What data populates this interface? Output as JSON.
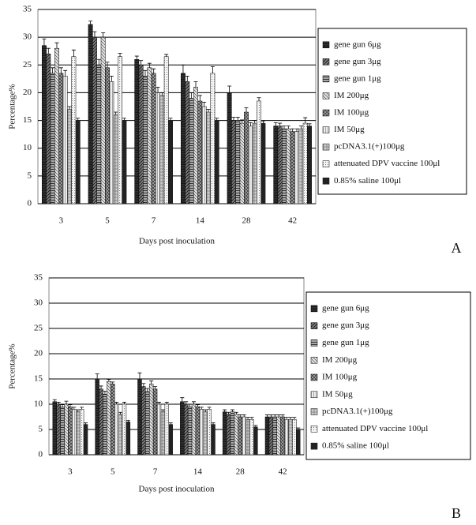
{
  "chart_data": [
    {
      "type": "bar",
      "panel_label": "A",
      "ylabel": "Percentage%",
      "xlabel": "Days post inoculation",
      "categories": [
        "3",
        "5",
        "7",
        "14",
        "28",
        "42"
      ],
      "ylim": [
        0,
        35
      ],
      "yticks": [
        0,
        5,
        10,
        15,
        20,
        25,
        30,
        35
      ],
      "grid": true,
      "legend": "right",
      "series": [
        {
          "name": "gene gun 6μg",
          "color": "#333333",
          "values": [
            28.5,
            32.3,
            26,
            23.5,
            20,
            14
          ],
          "errors": [
            1.2,
            0.6,
            0.6,
            1.5,
            1.2,
            0.6
          ]
        },
        {
          "name": "gene gun 3μg",
          "color": "#777777",
          "values": [
            27,
            30,
            25,
            22,
            15,
            14
          ],
          "errors": [
            1,
            1,
            0.8,
            1,
            0.6,
            0.5
          ]
        },
        {
          "name": "gene gun 1μg",
          "color": "#aaaaaa",
          "values": [
            23.5,
            25,
            23,
            19,
            15,
            13.5
          ],
          "errors": [
            1,
            1,
            1,
            1,
            0.6,
            0.5
          ]
        },
        {
          "name": "IM 200μg",
          "color": "#dddddd",
          "values": [
            28,
            30,
            24.5,
            21,
            14.5,
            13.5
          ],
          "errors": [
            1,
            0.8,
            0.8,
            1,
            0.6,
            0.5
          ]
        },
        {
          "name": "IM 100μg",
          "color": "#999999",
          "values": [
            23.5,
            24.5,
            23.5,
            18.5,
            16.5,
            13
          ],
          "errors": [
            1,
            1,
            0.8,
            1,
            0.8,
            0.5
          ]
        },
        {
          "name": "IM 50μg",
          "color": "#eeeeee",
          "values": [
            23,
            22,
            20,
            17.5,
            14,
            13
          ],
          "errors": [
            1,
            1,
            1,
            0.8,
            0.6,
            0.5
          ]
        },
        {
          "name": "pcDNA3.1(+)100μg",
          "color": "#cccccc",
          "values": [
            17,
            16,
            19.5,
            16.5,
            14.5,
            13.5
          ],
          "errors": [
            0.5,
            0.5,
            0.5,
            0.5,
            0.5,
            0.5
          ]
        },
        {
          "name": "attenuated DPV vaccine 100μl",
          "color": "#f4f4f4",
          "values": [
            26.5,
            26.5,
            26.5,
            23.5,
            18.5,
            14.5
          ],
          "errors": [
            1.2,
            0.6,
            0.4,
            1.2,
            0.6,
            1
          ]
        },
        {
          "name": "0.85% saline 100μl",
          "color": "#222222",
          "values": [
            15,
            15,
            15,
            15,
            14.5,
            14
          ],
          "errors": [
            0.4,
            0.4,
            0.4,
            0.4,
            0.4,
            0.4
          ]
        }
      ]
    },
    {
      "type": "bar",
      "panel_label": "B",
      "ylabel": "Percentage%",
      "xlabel": "Days post inoculation",
      "categories": [
        "3",
        "5",
        "7",
        "14",
        "28",
        "42"
      ],
      "ylim": [
        0,
        35
      ],
      "yticks": [
        0,
        5,
        10,
        15,
        20,
        25,
        30,
        35
      ],
      "grid": true,
      "legend": "right",
      "series": [
        {
          "name": "gene gun 6μg",
          "color": "#333333",
          "values": [
            10.5,
            15,
            15,
            10.5,
            8.5,
            7.5
          ],
          "errors": [
            0.4,
            1,
            1.2,
            0.8,
            0.4,
            0.4
          ]
        },
        {
          "name": "gene gun 3μg",
          "color": "#777777",
          "values": [
            10,
            13,
            13.5,
            10,
            8,
            7.5
          ],
          "errors": [
            0.4,
            0.6,
            0.6,
            0.5,
            0.4,
            0.4
          ]
        },
        {
          "name": "gene gun 1μg",
          "color": "#aaaaaa",
          "values": [
            9.5,
            12,
            12.5,
            9.5,
            8.5,
            7.5
          ],
          "errors": [
            0.4,
            0.6,
            0.6,
            0.5,
            0.4,
            0.4
          ]
        },
        {
          "name": "IM 200μg",
          "color": "#dddddd",
          "values": [
            10,
            14.5,
            14,
            10,
            8,
            7.5
          ],
          "errors": [
            0.6,
            0.4,
            0.6,
            0.5,
            0.4,
            0.4
          ]
        },
        {
          "name": "IM 100μg",
          "color": "#999999",
          "values": [
            9.5,
            14,
            13,
            9.5,
            7.5,
            7.5
          ],
          "errors": [
            0.4,
            0.4,
            0.5,
            0.4,
            0.4,
            0.4
          ]
        },
        {
          "name": "IM 50μg",
          "color": "#eeeeee",
          "values": [
            9,
            10,
            10,
            9,
            7.5,
            7
          ],
          "errors": [
            0.4,
            0.4,
            0.4,
            0.4,
            0.4,
            0.4
          ]
        },
        {
          "name": "pcDNA3.1(+)100μg",
          "color": "#cccccc",
          "values": [
            8.5,
            8,
            8.5,
            8.5,
            7,
            7
          ],
          "errors": [
            0.4,
            0.4,
            0.4,
            0.4,
            0.4,
            0.4
          ]
        },
        {
          "name": "attenuated DPV vaccine 100μl",
          "color": "#f4f4f4",
          "values": [
            9,
            10,
            10,
            9,
            7,
            7
          ],
          "errors": [
            0.4,
            0.4,
            0.4,
            0.4,
            0.4,
            0.4
          ]
        },
        {
          "name": "0.85% saline 100μl",
          "color": "#222222",
          "values": [
            6,
            6.5,
            6,
            6,
            5.5,
            5
          ],
          "errors": [
            0.3,
            0.3,
            0.3,
            0.3,
            0.3,
            0.3
          ]
        }
      ]
    }
  ]
}
